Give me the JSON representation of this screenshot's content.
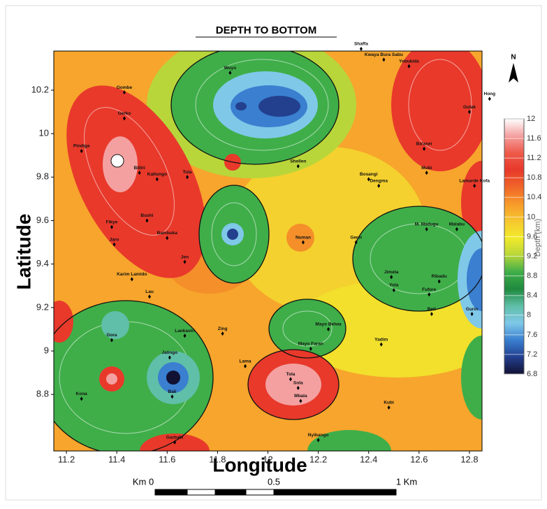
{
  "chart_data": {
    "type": "contour-map",
    "title": "DEPTH TO BOTTOM",
    "xlabel": "Longitude",
    "ylabel": "Latitude",
    "xlim": [
      11.15,
      12.85
    ],
    "ylim": [
      8.54,
      10.38
    ],
    "xticks": [
      11.2,
      11.4,
      11.6,
      11.8,
      12,
      12.2,
      12.4,
      12.6,
      12.8
    ],
    "yticks": [
      10.2,
      10,
      9.8,
      9.6,
      9.4,
      9.2,
      9,
      8.8
    ],
    "north_label": "N",
    "legend_title": "Depth (km)",
    "legend_ticks": [
      12,
      11.6,
      11.2,
      10.8,
      10.4,
      10,
      9.6,
      9.2,
      8.8,
      8.4,
      8,
      7.6,
      7.2,
      6.8
    ],
    "legend_colors": [
      "#ffffff",
      "#f4a0a0",
      "#ee5a4a",
      "#e8392b",
      "#f0652a",
      "#f79a2a",
      "#f6c730",
      "#f2ea2a",
      "#b8d63a",
      "#3fae49",
      "#1f8a3f",
      "#5fbfa8",
      "#7fc8e8",
      "#3a7fd0",
      "#23408f",
      "#111133"
    ],
    "scale_bar": [
      "Km 0",
      "0.5",
      "1 Km"
    ],
    "places": [
      {
        "name": "Shaffa",
        "lon": 12.37,
        "lat": 10.39
      },
      {
        "name": "Kwaya Bura Sabu",
        "lon": 12.46,
        "lat": 10.34
      },
      {
        "name": "Yebukida",
        "lon": 12.56,
        "lat": 10.31
      },
      {
        "name": "Wuyo",
        "lon": 11.85,
        "lat": 10.28
      },
      {
        "name": "Gombe",
        "lon": 11.43,
        "lat": 10.19
      },
      {
        "name": "Hong",
        "lon": 12.88,
        "lat": 10.16
      },
      {
        "name": "Gulak",
        "lon": 12.8,
        "lat": 10.1
      },
      {
        "name": "Gerko",
        "lon": 11.43,
        "lat": 10.07
      },
      {
        "name": "Ba'asei",
        "lon": 12.62,
        "lat": 9.93
      },
      {
        "name": "Pindiga",
        "lon": 11.26,
        "lat": 9.92
      },
      {
        "name": "Shellen",
        "lon": 12.12,
        "lat": 9.85
      },
      {
        "name": "Billiri",
        "lon": 11.49,
        "lat": 9.82
      },
      {
        "name": "Mubi",
        "lon": 12.63,
        "lat": 9.82
      },
      {
        "name": "Tula",
        "lon": 11.68,
        "lat": 9.8
      },
      {
        "name": "Bosangi",
        "lon": 12.4,
        "lat": 9.79
      },
      {
        "name": "Kaltungo",
        "lon": 11.56,
        "lat": 9.79
      },
      {
        "name": "Dengma",
        "lon": 12.44,
        "lat": 9.76
      },
      {
        "name": "Lamurde Kofa",
        "lon": 12.82,
        "lat": 9.76
      },
      {
        "name": "Bushi",
        "lon": 11.52,
        "lat": 9.6
      },
      {
        "name": "Fikye",
        "lon": 11.38,
        "lat": 9.57
      },
      {
        "name": "Malabu",
        "lon": 12.75,
        "lat": 9.56
      },
      {
        "name": "M. Madugu",
        "lon": 12.63,
        "lat": 9.56
      },
      {
        "name": "Bambuka",
        "lon": 11.6,
        "lat": 9.52
      },
      {
        "name": "Numan",
        "lon": 12.14,
        "lat": 9.5
      },
      {
        "name": "Gerei",
        "lon": 12.35,
        "lat": 9.5
      },
      {
        "name": "Jaro",
        "lon": 11.39,
        "lat": 9.49
      },
      {
        "name": "Jen",
        "lon": 11.67,
        "lat": 9.41
      },
      {
        "name": "Jimeta",
        "lon": 12.49,
        "lat": 9.34
      },
      {
        "name": "Karim Lamido",
        "lon": 11.46,
        "lat": 9.33
      },
      {
        "name": "Ribadu",
        "lon": 12.68,
        "lat": 9.32
      },
      {
        "name": "Yola",
        "lon": 12.5,
        "lat": 9.28
      },
      {
        "name": "Fufore",
        "lon": 12.64,
        "lat": 9.26
      },
      {
        "name": "Lau",
        "lon": 11.53,
        "lat": 9.25
      },
      {
        "name": "Beti",
        "lon": 12.65,
        "lat": 9.17
      },
      {
        "name": "Gurin",
        "lon": 12.81,
        "lat": 9.17
      },
      {
        "name": "Mayo Belwa",
        "lon": 12.24,
        "lat": 9.1
      },
      {
        "name": "Zing",
        "lon": 11.82,
        "lat": 9.08
      },
      {
        "name": "Lankaviri",
        "lon": 11.67,
        "lat": 9.07
      },
      {
        "name": "Gora",
        "lon": 11.38,
        "lat": 9.05
      },
      {
        "name": "Yadim",
        "lon": 12.45,
        "lat": 9.03
      },
      {
        "name": "Mayo Faran",
        "lon": 12.17,
        "lat": 9.01
      },
      {
        "name": "Jalingo",
        "lon": 11.61,
        "lat": 8.97
      },
      {
        "name": "Lama",
        "lon": 11.91,
        "lat": 8.93
      },
      {
        "name": "Tola",
        "lon": 12.09,
        "lat": 8.87
      },
      {
        "name": "Sola",
        "lon": 12.12,
        "lat": 8.83
      },
      {
        "name": "Bali",
        "lon": 11.62,
        "lat": 8.79
      },
      {
        "name": "Kona",
        "lon": 11.26,
        "lat": 8.78
      },
      {
        "name": "Mbala",
        "lon": 12.13,
        "lat": 8.77
      },
      {
        "name": "Kubi",
        "lon": 12.48,
        "lat": 8.74
      },
      {
        "name": "Nyibango",
        "lon": 12.2,
        "lat": 8.59
      },
      {
        "name": "Garbabi",
        "lon": 11.63,
        "lat": 8.58
      }
    ]
  }
}
